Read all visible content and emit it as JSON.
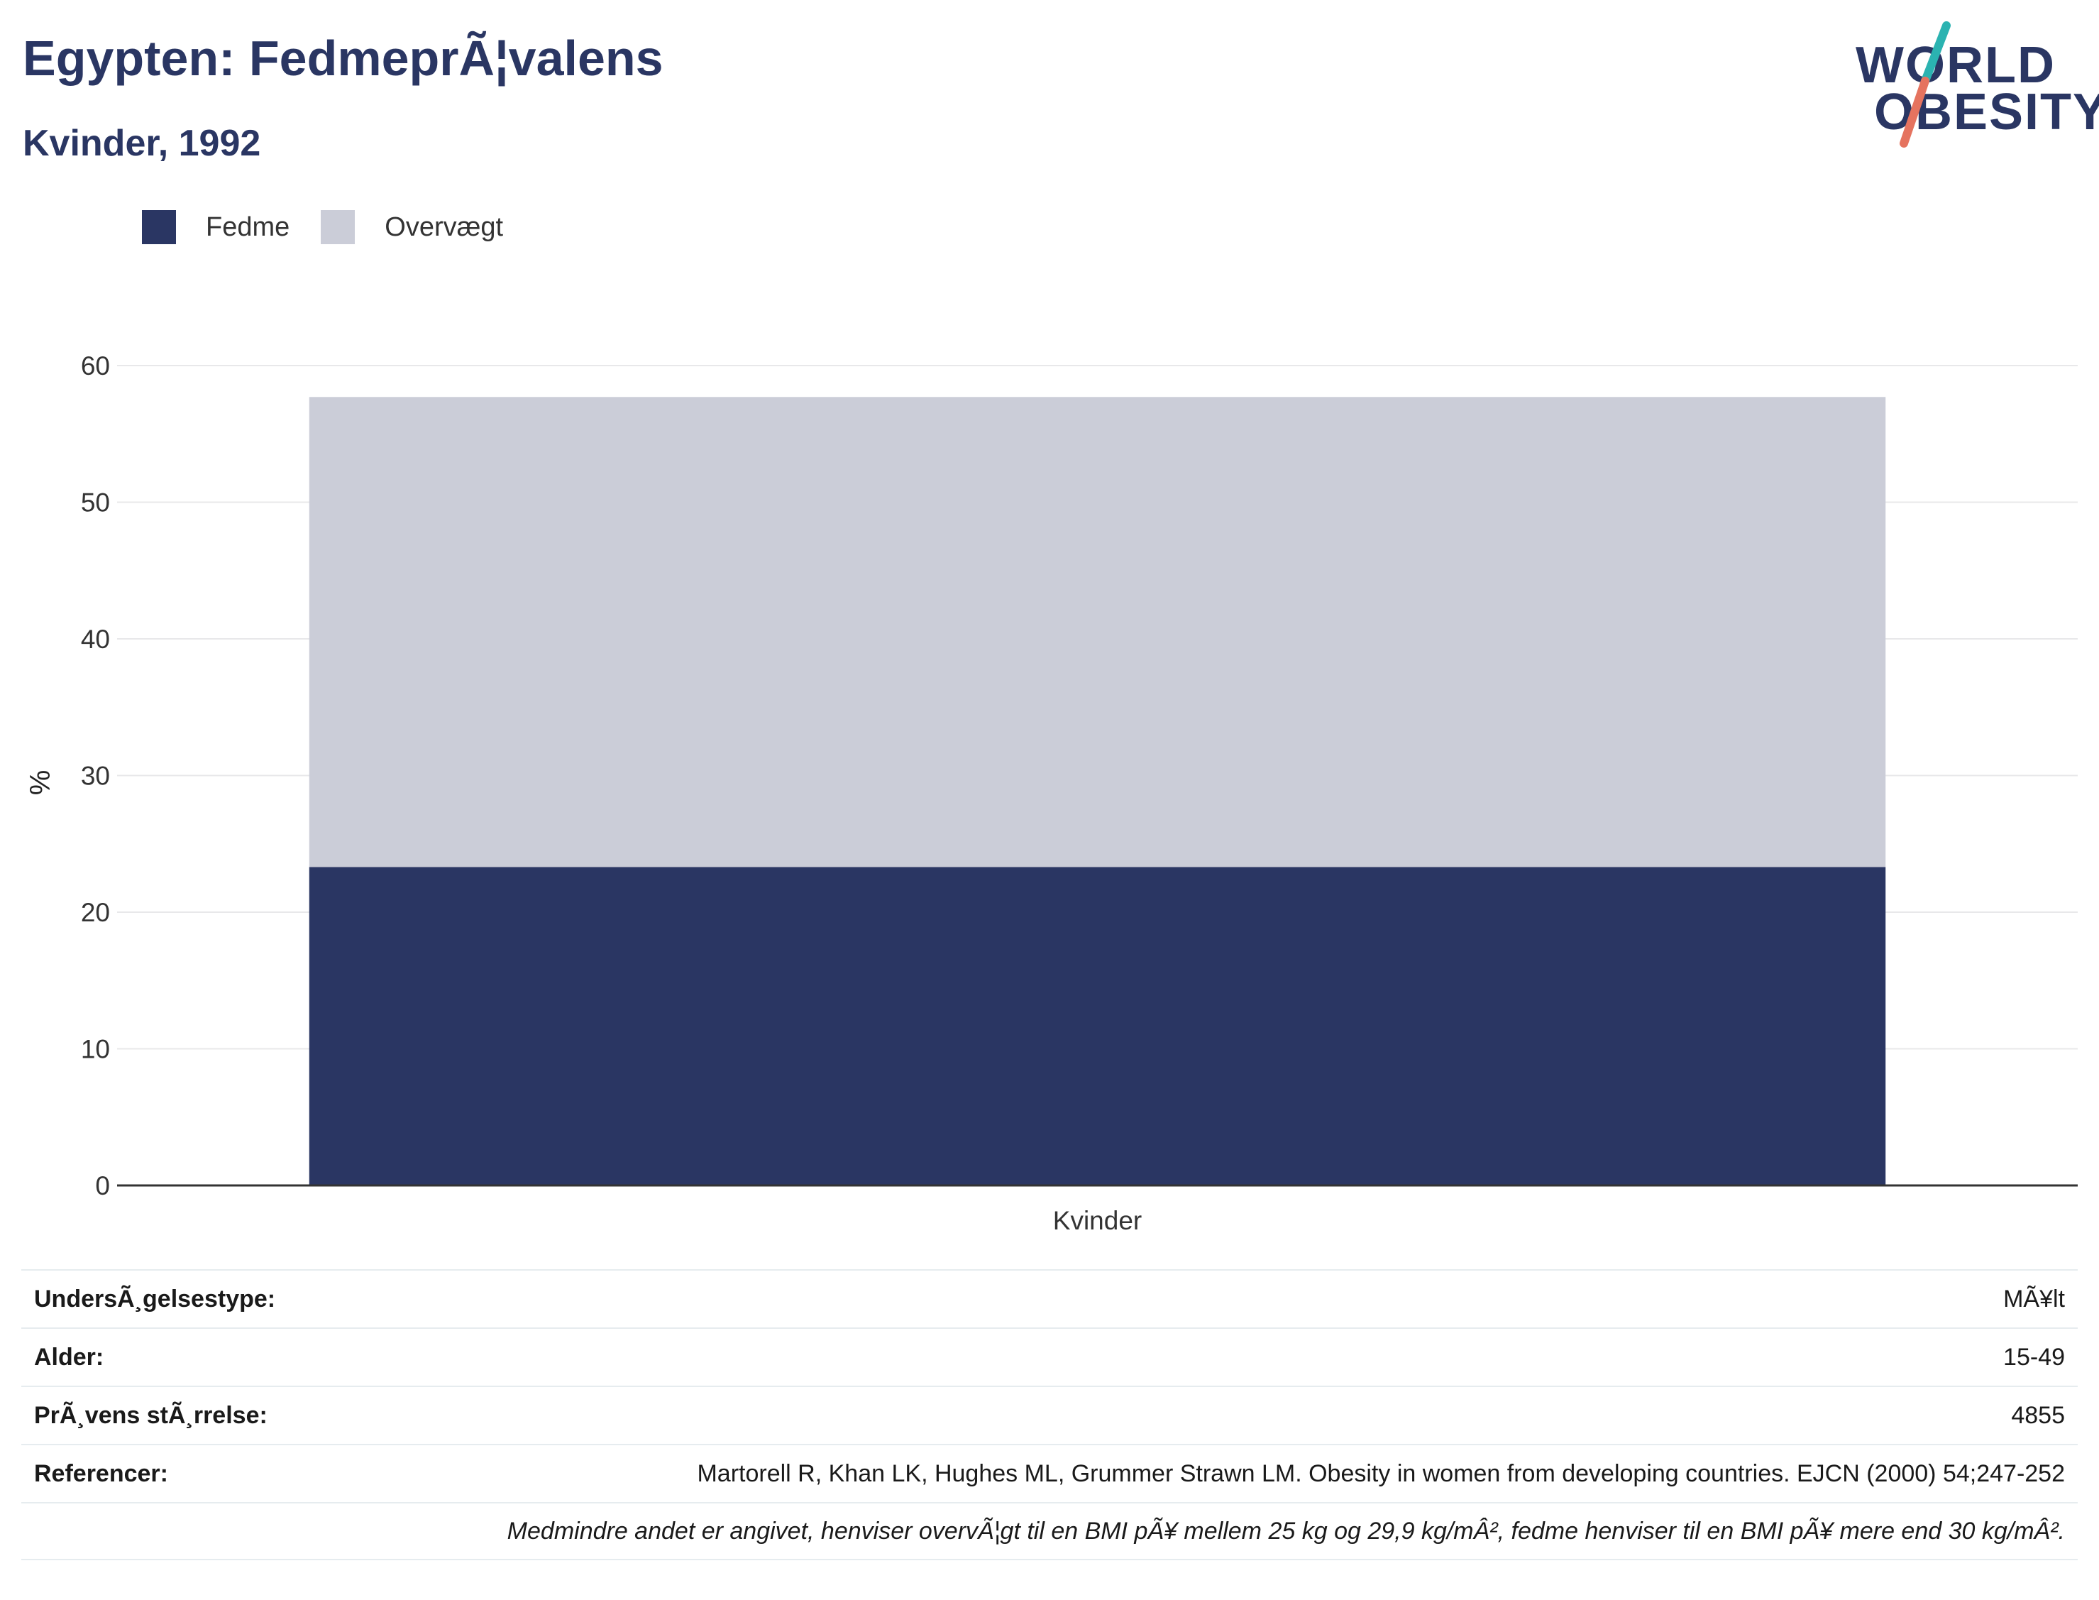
{
  "header": {
    "title": "Egypten: FedmeprÃ¦valens",
    "subtitle": "Kvinder, 1992"
  },
  "logo": {
    "line1": "WORLD",
    "line2": "OBESITY",
    "colors": {
      "text": "#2a3663",
      "slash_top": "#2bb3b1",
      "slash_bottom": "#e5735f"
    }
  },
  "legend": [
    {
      "label": "Fedme",
      "color": "#2a3663"
    },
    {
      "label": "Overvægt",
      "color": "#cbcdd8"
    }
  ],
  "chart_data": {
    "type": "bar",
    "stacked": true,
    "categories": [
      "Kvinder"
    ],
    "series": [
      {
        "name": "Fedme",
        "values": [
          23.3
        ],
        "color": "#2a3663"
      },
      {
        "name": "Overvægt",
        "values": [
          34.4
        ],
        "color": "#cbcdd8"
      }
    ],
    "ylabel": "%",
    "xlabel": "",
    "ylim": [
      0,
      60
    ],
    "yticks": [
      0,
      10,
      20,
      30,
      40,
      50,
      60
    ],
    "grid": true,
    "legend_position": "top-left"
  },
  "info": {
    "rows": [
      {
        "label": "UndersÃ¸gelsestype:",
        "value": "MÃ¥lt"
      },
      {
        "label": "Alder:",
        "value": "15-49"
      },
      {
        "label": "PrÃ¸vens stÃ¸rrelse:",
        "value": "4855"
      },
      {
        "label": "Referencer:",
        "value": "Martorell R, Khan LK, Hughes ML, Grummer Strawn LM. Obesity in women from developing countries. EJCN (2000) 54;247-252"
      }
    ],
    "note": "Medmindre andet er angivet, henviser overvÃ¦gt til en BMI pÃ¥ mellem 25 kg og 29,9 kg/mÂ², fedme henviser til en BMI pÃ¥ mere end 30 kg/mÂ²."
  }
}
